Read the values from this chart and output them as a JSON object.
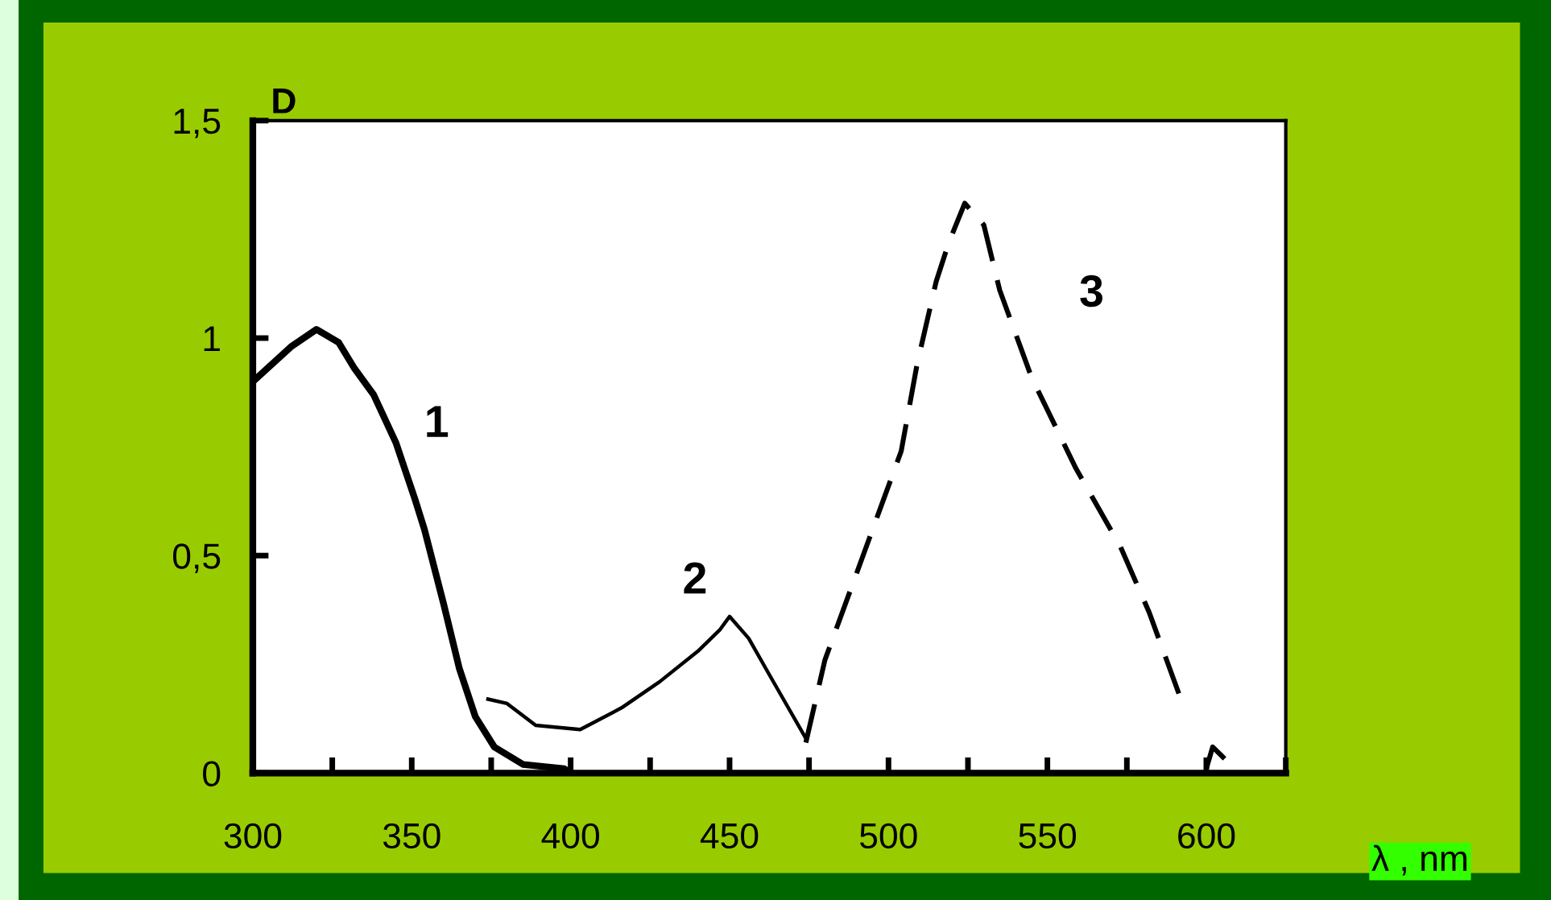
{
  "chart_data": {
    "type": "line",
    "ylabel": "D",
    "xlabel": "λ , nm",
    "xlim": [
      300,
      625
    ],
    "ylim": [
      0,
      1.5
    ],
    "xticks": [
      300,
      {
        "value": 325,
        "label": null
      },
      350,
      {
        "value": 375,
        "label": null
      },
      400,
      {
        "value": 425,
        "label": null
      },
      450,
      {
        "value": 475,
        "label": null
      },
      500,
      {
        "value": 525,
        "label": null
      },
      550,
      {
        "value": 575,
        "label": null
      },
      600,
      {
        "value": 625,
        "label": null
      }
    ],
    "yticks": [
      {
        "value": 0,
        "label": "0"
      },
      {
        "value": 0.5,
        "label": "0,5"
      },
      {
        "value": 1,
        "label": "1"
      },
      {
        "value": 1.5,
        "label": "1,5"
      }
    ],
    "grid": false,
    "legend": false,
    "marker": "none",
    "series": [
      {
        "name": "1",
        "color": "#000000",
        "line_style": "solid",
        "x": [
          300,
          312,
          320,
          327,
          332,
          338,
          345,
          351,
          354,
          360,
          365,
          370,
          376,
          385,
          398,
          400
        ],
        "values": [
          0.9,
          0.98,
          1.02,
          0.99,
          0.93,
          0.87,
          0.76,
          0.63,
          0.56,
          0.39,
          0.24,
          0.13,
          0.06,
          0.02,
          0.01,
          0
        ]
      },
      {
        "name": "2",
        "color": "#000000",
        "line_style": "solid",
        "x": [
          374,
          380,
          389,
          403,
          416,
          428,
          440,
          447,
          450,
          456,
          463,
          474
        ],
        "values": [
          0.17,
          0.16,
          0.11,
          0.1,
          0.15,
          0.21,
          0.28,
          0.33,
          0.36,
          0.31,
          0.22,
          0.08
        ]
      },
      {
        "name": "3",
        "color": "#000000",
        "line_style": "dashed",
        "x": [
          474,
          480,
          494,
          504,
          509,
          515,
          519,
          524,
          530,
          535,
          545,
          559,
          573,
          582,
          593,
          597,
          600,
          602,
          609
        ],
        "values": [
          0.07,
          0.26,
          0.54,
          0.74,
          0.94,
          1.13,
          1.22,
          1.31,
          1.26,
          1.11,
          0.91,
          0.7,
          0.52,
          0.37,
          0.15,
          null,
          0.01,
          0.06,
          0.01
        ]
      }
    ]
  }
}
